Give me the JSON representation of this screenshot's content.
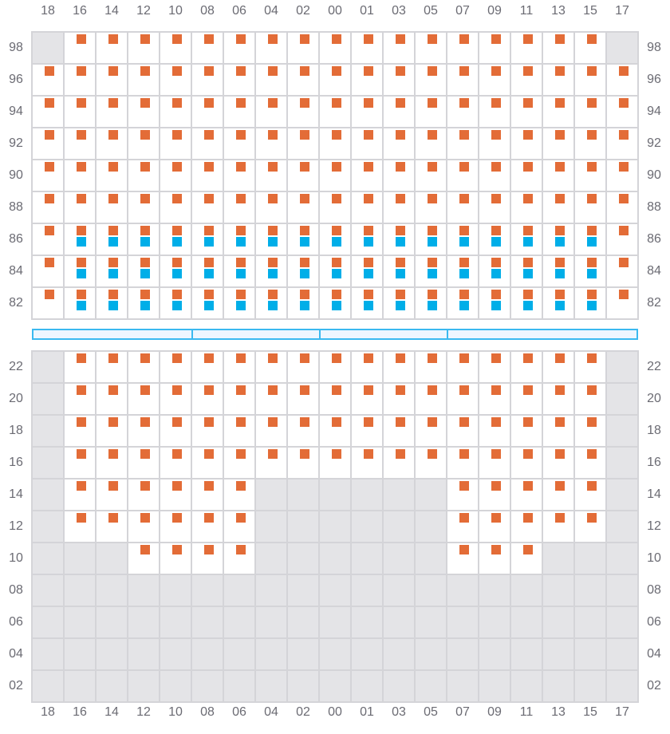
{
  "colors": {
    "primary_marker": "#e36c37",
    "secondary_marker": "#00aee8",
    "unavailable": "#e4e4e7",
    "bar_border": "#3bb9f0"
  },
  "columns": [
    "18",
    "16",
    "14",
    "12",
    "10",
    "08",
    "06",
    "04",
    "02",
    "00",
    "01",
    "03",
    "05",
    "07",
    "09",
    "11",
    "13",
    "15",
    "17"
  ],
  "legend_codes": {
    "X": "unavailable",
    "O": "primary marker",
    "B": "primary and secondary markers"
  },
  "top_section": {
    "rows": [
      {
        "label": "98",
        "cells": "XOOOOOOOOOOOOOOOOOX"
      },
      {
        "label": "96",
        "cells": "OOOOOOOOOOOOOOOOOOO"
      },
      {
        "label": "94",
        "cells": "OOOOOOOOOOOOOOOOOOO"
      },
      {
        "label": "92",
        "cells": "OOOOOOOOOOOOOOOOOOO"
      },
      {
        "label": "90",
        "cells": "OOOOOOOOOOOOOOOOOOO"
      },
      {
        "label": "88",
        "cells": "OOOOOOOOOOOOOOOOOOO"
      },
      {
        "label": "86",
        "cells": "OBBBBBBBBBBBBBBBBBO"
      },
      {
        "label": "84",
        "cells": "OBBBBBBBBBBBBBBBBBO"
      },
      {
        "label": "82",
        "cells": "OBBBBBBBBBBBBBBBBBO"
      }
    ]
  },
  "divider_segments": [
    [
      "18",
      "10"
    ],
    [
      "08",
      "02"
    ],
    [
      "00",
      "05"
    ],
    [
      "07",
      "17"
    ]
  ],
  "bottom_section": {
    "rows": [
      {
        "label": "22",
        "cells": "XOOOOOOOOOOOOOOOOOX"
      },
      {
        "label": "20",
        "cells": "XOOOOOOOOOOOOOOOOOX"
      },
      {
        "label": "18",
        "cells": "XOOOOOOOOOOOOOOOOOX"
      },
      {
        "label": "16",
        "cells": "XOOOOOOOOOOOOOOOOOX"
      },
      {
        "label": "14",
        "cells": "XOOOOOOXXXXXXOOOOOX"
      },
      {
        "label": "12",
        "cells": "XOOOOOOXXXXXXOOOOOX"
      },
      {
        "label": "10",
        "cells": "XXXOOOOXXXXXXOOOXXX"
      },
      {
        "label": "08",
        "cells": "XXXXXXXXXXXXXXXXXXX"
      },
      {
        "label": "06",
        "cells": "XXXXXXXXXXXXXXXXXXX"
      },
      {
        "label": "04",
        "cells": "XXXXXXXXXXXXXXXXXXX"
      },
      {
        "label": "02",
        "cells": "XXXXXXXXXXXXXXXXXXX"
      }
    ]
  }
}
